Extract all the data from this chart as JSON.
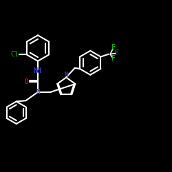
{
  "background_color": "#000000",
  "bond_color": "#ffffff",
  "atom_colors": {
    "N": "#4444ff",
    "O": "#ff2200",
    "Cl": "#00cc00",
    "F": "#00cc00",
    "C": "#ffffff"
  },
  "figsize": [
    2.5,
    2.5
  ],
  "dpi": 100
}
